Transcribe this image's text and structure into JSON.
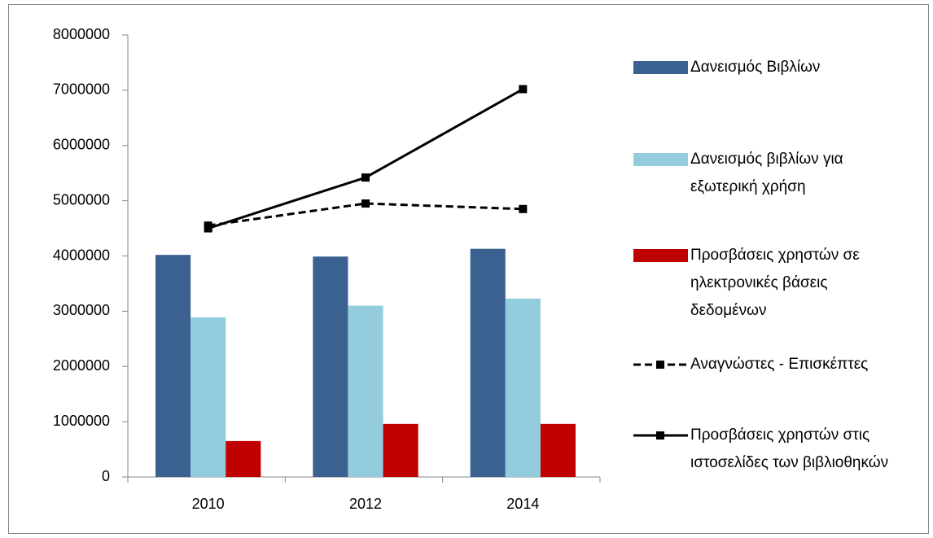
{
  "chart_data": {
    "type": "bar",
    "categories": [
      "2010",
      "2012",
      "2014"
    ],
    "series": [
      {
        "name": "Δανεισμός Βιβλίων",
        "type": "bar",
        "color": "#3a6190",
        "values": [
          4020000,
          3990000,
          4130000
        ]
      },
      {
        "name": "Δανεισμός βιβλίων για εξωτερική χρήση",
        "type": "bar",
        "color": "#93cddd",
        "values": [
          2890000,
          3100000,
          3230000
        ]
      },
      {
        "name": "Προσβάσεις χρηστών σε ηλεκτρονικές βάσεις δεδομένων",
        "type": "bar",
        "color": "#c00000",
        "values": [
          650000,
          960000,
          960000
        ]
      },
      {
        "name": "Αναγνώστες - Επισκέπτες",
        "type": "line",
        "dashed": true,
        "color": "#000000",
        "values": [
          4550000,
          4950000,
          4850000
        ]
      },
      {
        "name": "Προσβάσεις χρηστών στις ιστοσελίδες των βιβλιοθηκών",
        "type": "line",
        "dashed": false,
        "color": "#000000",
        "values": [
          4500000,
          5420000,
          7020000
        ]
      }
    ],
    "ylim": [
      0,
      8000000
    ],
    "yticks": [
      0,
      1000000,
      2000000,
      3000000,
      4000000,
      5000000,
      6000000,
      7000000,
      8000000
    ],
    "grid": false,
    "legend": "right"
  }
}
